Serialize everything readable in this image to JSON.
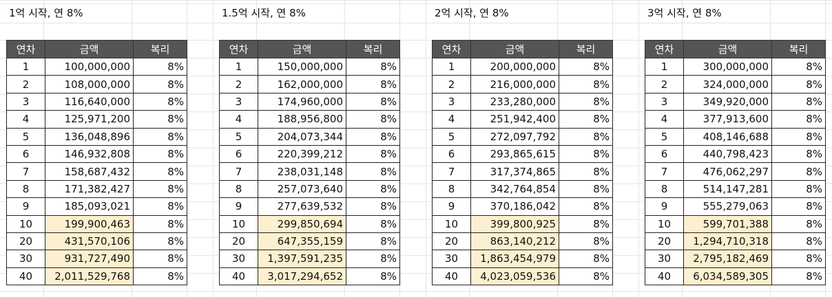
{
  "blocks": [
    {
      "title": "1억 시작, 연 8%",
      "headers": [
        "연차",
        "금액",
        "복리"
      ],
      "rows": [
        {
          "year": "1",
          "amount": "100,000,000",
          "rate": "8%",
          "highlight": false
        },
        {
          "year": "2",
          "amount": "108,000,000",
          "rate": "8%",
          "highlight": false
        },
        {
          "year": "3",
          "amount": "116,640,000",
          "rate": "8%",
          "highlight": false
        },
        {
          "year": "4",
          "amount": "125,971,200",
          "rate": "8%",
          "highlight": false
        },
        {
          "year": "5",
          "amount": "136,048,896",
          "rate": "8%",
          "highlight": false
        },
        {
          "year": "6",
          "amount": "146,932,808",
          "rate": "8%",
          "highlight": false
        },
        {
          "year": "7",
          "amount": "158,687,432",
          "rate": "8%",
          "highlight": false
        },
        {
          "year": "8",
          "amount": "171,382,427",
          "rate": "8%",
          "highlight": false
        },
        {
          "year": "9",
          "amount": "185,093,021",
          "rate": "8%",
          "highlight": false
        },
        {
          "year": "10",
          "amount": "199,900,463",
          "rate": "8%",
          "highlight": true
        },
        {
          "year": "20",
          "amount": "431,570,106",
          "rate": "8%",
          "highlight": true
        },
        {
          "year": "30",
          "amount": "931,727,490",
          "rate": "8%",
          "highlight": true
        },
        {
          "year": "40",
          "amount": "2,011,529,768",
          "rate": "8%",
          "highlight": true
        }
      ]
    },
    {
      "title": "1.5억 시작, 연 8%",
      "headers": [
        "연차",
        "금액",
        "복리"
      ],
      "rows": [
        {
          "year": "1",
          "amount": "150,000,000",
          "rate": "8%",
          "highlight": false
        },
        {
          "year": "2",
          "amount": "162,000,000",
          "rate": "8%",
          "highlight": false
        },
        {
          "year": "3",
          "amount": "174,960,000",
          "rate": "8%",
          "highlight": false
        },
        {
          "year": "4",
          "amount": "188,956,800",
          "rate": "8%",
          "highlight": false
        },
        {
          "year": "5",
          "amount": "204,073,344",
          "rate": "8%",
          "highlight": false
        },
        {
          "year": "6",
          "amount": "220,399,212",
          "rate": "8%",
          "highlight": false
        },
        {
          "year": "7",
          "amount": "238,031,148",
          "rate": "8%",
          "highlight": false
        },
        {
          "year": "8",
          "amount": "257,073,640",
          "rate": "8%",
          "highlight": false
        },
        {
          "year": "9",
          "amount": "277,639,532",
          "rate": "8%",
          "highlight": false
        },
        {
          "year": "10",
          "amount": "299,850,694",
          "rate": "8%",
          "highlight": true
        },
        {
          "year": "20",
          "amount": "647,355,159",
          "rate": "8%",
          "highlight": true
        },
        {
          "year": "30",
          "amount": "1,397,591,235",
          "rate": "8%",
          "highlight": true
        },
        {
          "year": "40",
          "amount": "3,017,294,652",
          "rate": "8%",
          "highlight": true
        }
      ]
    },
    {
      "title": "2억 시작, 연 8%",
      "headers": [
        "연차",
        "금액",
        "복리"
      ],
      "rows": [
        {
          "year": "1",
          "amount": "200,000,000",
          "rate": "8%",
          "highlight": false
        },
        {
          "year": "2",
          "amount": "216,000,000",
          "rate": "8%",
          "highlight": false
        },
        {
          "year": "3",
          "amount": "233,280,000",
          "rate": "8%",
          "highlight": false
        },
        {
          "year": "4",
          "amount": "251,942,400",
          "rate": "8%",
          "highlight": false
        },
        {
          "year": "5",
          "amount": "272,097,792",
          "rate": "8%",
          "highlight": false
        },
        {
          "year": "6",
          "amount": "293,865,615",
          "rate": "8%",
          "highlight": false
        },
        {
          "year": "7",
          "amount": "317,374,865",
          "rate": "8%",
          "highlight": false
        },
        {
          "year": "8",
          "amount": "342,764,854",
          "rate": "8%",
          "highlight": false
        },
        {
          "year": "9",
          "amount": "370,186,042",
          "rate": "8%",
          "highlight": false
        },
        {
          "year": "10",
          "amount": "399,800,925",
          "rate": "8%",
          "highlight": true
        },
        {
          "year": "20",
          "amount": "863,140,212",
          "rate": "8%",
          "highlight": true
        },
        {
          "year": "30",
          "amount": "1,863,454,979",
          "rate": "8%",
          "highlight": true
        },
        {
          "year": "40",
          "amount": "4,023,059,536",
          "rate": "8%",
          "highlight": true
        }
      ]
    },
    {
      "title": "3억 시작, 연 8%",
      "headers": [
        "연차",
        "금액",
        "복리"
      ],
      "rows": [
        {
          "year": "1",
          "amount": "300,000,000",
          "rate": "8%",
          "highlight": false
        },
        {
          "year": "2",
          "amount": "324,000,000",
          "rate": "8%",
          "highlight": false
        },
        {
          "year": "3",
          "amount": "349,920,000",
          "rate": "8%",
          "highlight": false
        },
        {
          "year": "4",
          "amount": "377,913,600",
          "rate": "8%",
          "highlight": false
        },
        {
          "year": "5",
          "amount": "408,146,688",
          "rate": "8%",
          "highlight": false
        },
        {
          "year": "6",
          "amount": "440,798,423",
          "rate": "8%",
          "highlight": false
        },
        {
          "year": "7",
          "amount": "476,062,297",
          "rate": "8%",
          "highlight": false
        },
        {
          "year": "8",
          "amount": "514,147,281",
          "rate": "8%",
          "highlight": false
        },
        {
          "year": "9",
          "amount": "555,279,063",
          "rate": "8%",
          "highlight": false
        },
        {
          "year": "10",
          "amount": "599,701,388",
          "rate": "8%",
          "highlight": true
        },
        {
          "year": "20",
          "amount": "1,294,710,318",
          "rate": "8%",
          "highlight": true
        },
        {
          "year": "30",
          "amount": "2,795,182,469",
          "rate": "8%",
          "highlight": true
        },
        {
          "year": "40",
          "amount": "6,034,589,305",
          "rate": "8%",
          "highlight": true
        }
      ]
    }
  ],
  "colors": {
    "header_bg": "#555555",
    "header_text": "#ffffff",
    "highlight_bg": "#fdf0d0",
    "gridline": "#e4e4e4"
  }
}
